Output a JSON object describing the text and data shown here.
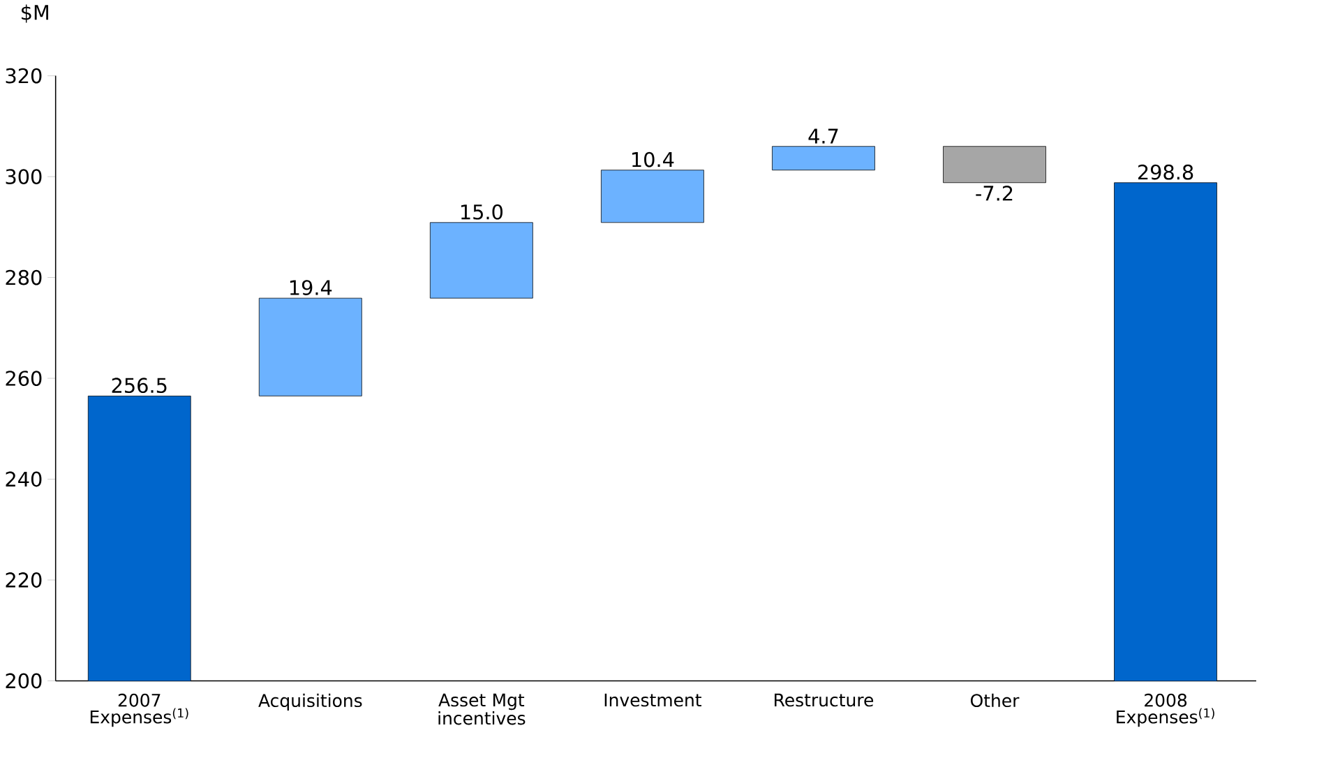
{
  "chart_data": {
    "type": "bar",
    "ylabel": "$M",
    "categories": [
      "2007 Expenses$^{(1)}$",
      "Acquisitions",
      "Asset Mgt incentives",
      "Investment",
      "Restructure",
      "Other",
      "2008 Expenses$^{(1)}$"
    ],
    "values": [
      256.5,
      19.4,
      15.0,
      10.4,
      4.7,
      -7.2,
      298.8
    ],
    "base": [
      0,
      256.5,
      275.9,
      290.9,
      301.3,
      306.0,
      0
    ],
    "value_labels": [
      "256.5",
      "19.4",
      "15.0",
      "10.4",
      "4.7",
      "-7.2",
      "298.8"
    ],
    "colors": [
      "#0066cc",
      "#6cb2ff",
      "#6cb2ff",
      "#6cb2ff",
      "#6cb2ff",
      "#a6a6a6",
      "#0066cc"
    ],
    "ylim": [
      200,
      320
    ],
    "yticks": [
      200,
      220,
      240,
      260,
      280,
      300,
      320
    ],
    "grid": false
  }
}
